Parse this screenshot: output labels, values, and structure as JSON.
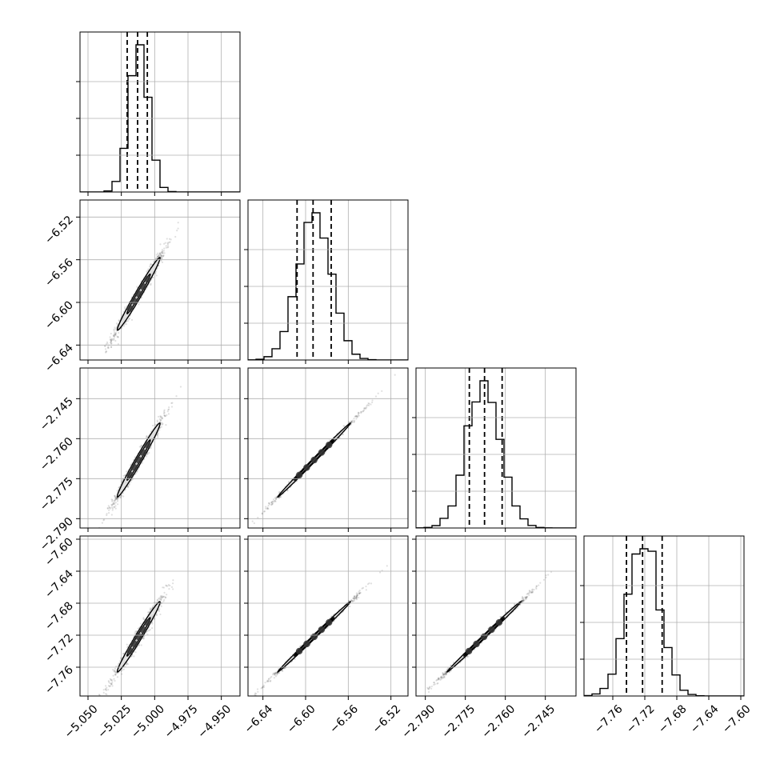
{
  "chart_data": {
    "type": "corner",
    "grid": true,
    "title": "",
    "parameters": [
      {
        "range": [
          -5.056,
          -4.936
        ],
        "ticks": [
          -5.05,
          -5.025,
          -5.0,
          -4.975,
          -4.95
        ],
        "tick_labels": [
          "−5.050",
          "−5.025",
          "−5.000",
          "−4.975",
          "−4.950"
        ],
        "quantiles": [
          -5.0206,
          -5.0128,
          -5.0055
        ],
        "peak": -5.012,
        "sigma": 0.0073
      },
      {
        "range": [
          -6.654,
          -6.504
        ],
        "ticks": [
          -6.64,
          -6.6,
          -6.56,
          -6.52
        ],
        "tick_labels": [
          "−6.64",
          "−6.60",
          "−6.56",
          "−6.52"
        ],
        "quantiles": [
          -6.608,
          -6.593,
          -6.576
        ],
        "peak": -6.592,
        "sigma": 0.0155
      },
      {
        "range": [
          -2.7935,
          -2.7335
        ],
        "ticks": [
          -2.79,
          -2.775,
          -2.76,
          -2.745
        ],
        "tick_labels": [
          "−2.790",
          "−2.775",
          "−2.760",
          "−2.745"
        ],
        "quantiles": [
          -2.7735,
          -2.7678,
          -2.7612
        ],
        "peak": -2.768,
        "sigma": 0.0063
      },
      {
        "range": [
          -7.796,
          -7.596
        ],
        "ticks": [
          -7.76,
          -7.72,
          -7.68,
          -7.64,
          -7.6
        ],
        "tick_labels": [
          "−7.76",
          "−7.72",
          "−7.68",
          "−7.64",
          "−7.60"
        ],
        "quantiles": [
          -7.7429,
          -7.7228,
          -7.6983
        ],
        "peak": -7.722,
        "sigma": 0.02
      }
    ],
    "histogram_bins": 20,
    "colors": {
      "line": "#000000",
      "grid": "#b0b0b0",
      "points": "#000000",
      "contour_fill": "#d8d8d8"
    }
  }
}
